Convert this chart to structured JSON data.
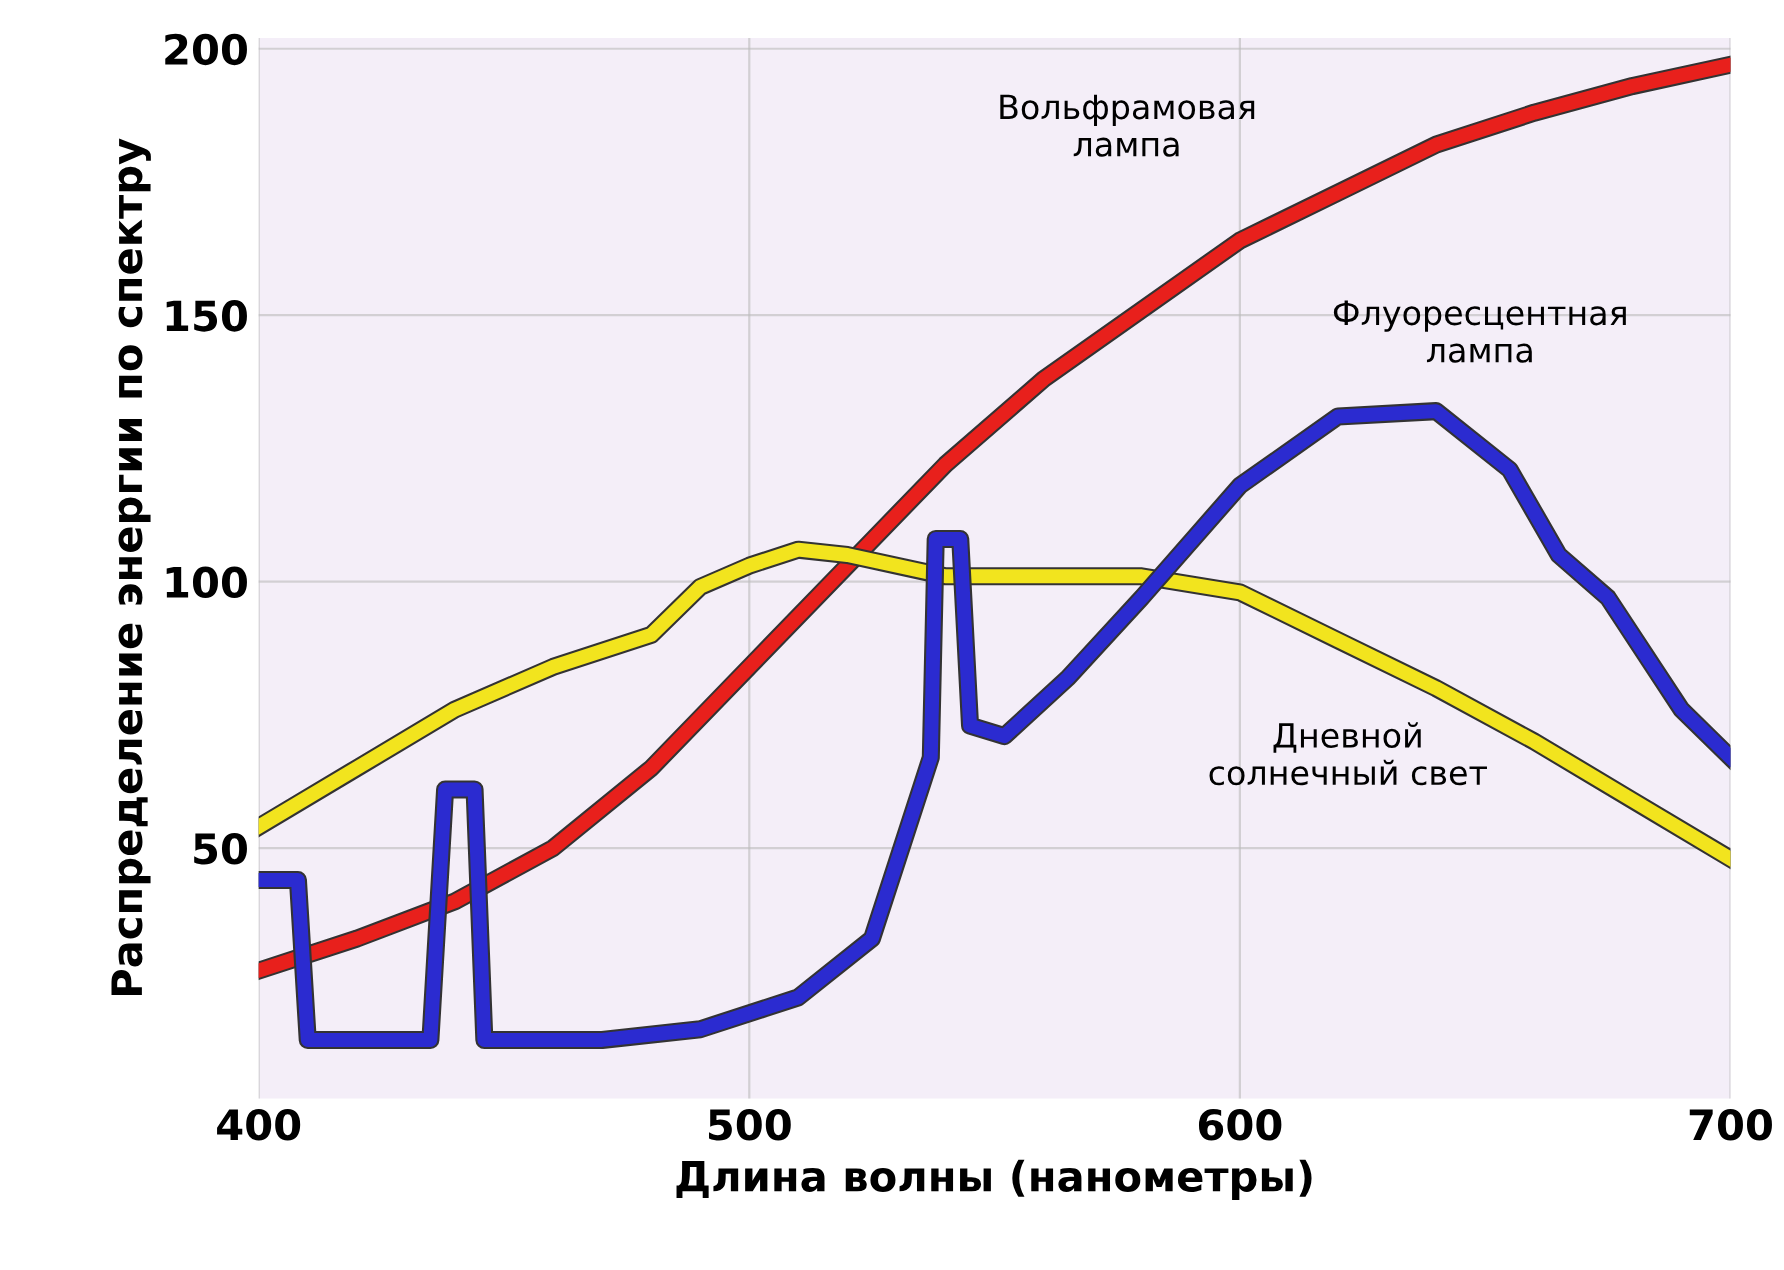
{
  "chart_data": {
    "type": "line",
    "xlabel": "Длина волны (нанометры)",
    "ylabel": "Распределение энергии по спектру",
    "xlim": [
      400,
      700
    ],
    "ylim": [
      3,
      202
    ],
    "xticks": [
      400,
      500,
      600,
      700
    ],
    "yticks": [
      50,
      100,
      150,
      200
    ],
    "grid": true,
    "line_style": "solid",
    "series": [
      {
        "name": "Вольфрамовая\nлампа",
        "color": "#e8201c",
        "x": [
          400,
          420,
          440,
          460,
          480,
          500,
          520,
          540,
          560,
          580,
          600,
          620,
          640,
          660,
          680,
          700
        ],
        "values": [
          27,
          33,
          40,
          50,
          65,
          84,
          103,
          122,
          138,
          151,
          164,
          173,
          182,
          188,
          193,
          197
        ]
      },
      {
        "name": "Дневной\nсолнечный свет",
        "color": "#f2e41e",
        "x": [
          400,
          420,
          440,
          460,
          480,
          490,
          500,
          510,
          520,
          540,
          560,
          580,
          600,
          620,
          640,
          660,
          680,
          700
        ],
        "values": [
          54,
          65,
          76,
          84,
          90,
          99,
          103,
          106,
          105,
          101,
          101,
          101,
          98,
          89,
          80,
          70,
          59,
          48
        ]
      },
      {
        "name": "Флуоресцентная\nлампа",
        "color": "#2b2bd0",
        "x": [
          400,
          408,
          410,
          412,
          435,
          438,
          444,
          446,
          470,
          490,
          510,
          525,
          537,
          538,
          543,
          545,
          552,
          565,
          580,
          600,
          620,
          640,
          655,
          665,
          675,
          690,
          700
        ],
        "values": [
          44,
          44,
          14,
          14,
          14,
          61,
          61,
          14,
          14,
          16,
          22,
          33,
          67,
          108,
          108,
          73,
          71,
          82,
          97,
          118,
          131,
          132,
          121,
          105,
          97,
          76,
          67
        ]
      }
    ]
  }
}
